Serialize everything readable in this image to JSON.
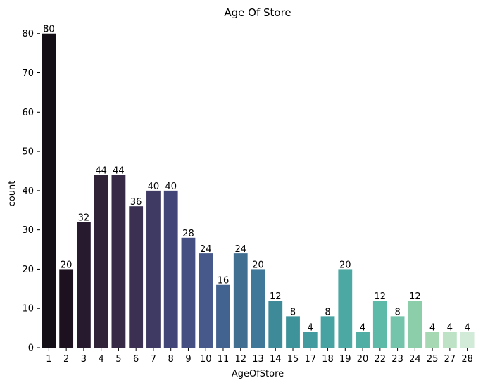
{
  "chart_data": {
    "type": "bar",
    "title": "Age Of Store",
    "xlabel": "AgeOfStore",
    "ylabel": "count",
    "categories": [
      "1",
      "2",
      "3",
      "4",
      "5",
      "6",
      "7",
      "8",
      "9",
      "10",
      "11",
      "12",
      "13",
      "14",
      "15",
      "17",
      "18",
      "19",
      "20",
      "22",
      "23",
      "24",
      "25",
      "27",
      "28"
    ],
    "values": [
      80,
      20,
      32,
      44,
      44,
      36,
      40,
      40,
      28,
      24,
      16,
      24,
      20,
      12,
      8,
      4,
      8,
      20,
      4,
      12,
      8,
      12,
      4,
      4,
      4
    ],
    "ylim": [
      0,
      83
    ],
    "yticks": [
      0,
      10,
      20,
      30,
      40,
      50,
      60,
      70,
      80
    ],
    "grid": false,
    "data_labels": true,
    "colors": [
      "#140e17",
      "#1d111f",
      "#271a2e",
      "#302237",
      "#362a46",
      "#3b3052",
      "#3e3a63",
      "#424577",
      "#464f82",
      "#46598a",
      "#42628f",
      "#416f92",
      "#3f7898",
      "#3e8a99",
      "#3e939b",
      "#449b9f",
      "#46a3a1",
      "#4ca8a3",
      "#51aea5",
      "#5ebaa8",
      "#74c4ab",
      "#8bcea9",
      "#a6d8b4",
      "#bde2c6",
      "#d2ebd8"
    ]
  }
}
